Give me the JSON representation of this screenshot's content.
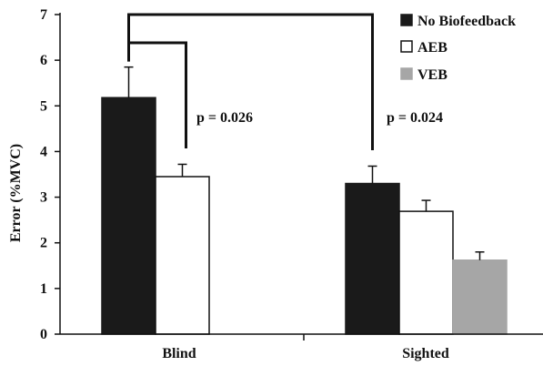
{
  "chart_data": {
    "type": "bar",
    "title": "",
    "xlabel": "",
    "ylabel": "Error (%MVC)",
    "ylim": [
      0,
      7
    ],
    "yticks": [
      0,
      1,
      2,
      3,
      4,
      5,
      6,
      7
    ],
    "grid": false,
    "legend_position": "top-right",
    "categories": [
      "Blind",
      "Sighted"
    ],
    "series": [
      {
        "name": "No Biofeedback",
        "color": "#1a1a1a",
        "values": [
          5.18,
          3.3
        ],
        "errors": [
          0.67,
          0.38
        ]
      },
      {
        "name": "AEB",
        "color": "#ffffff",
        "values": [
          3.45,
          2.69
        ],
        "errors": [
          0.27,
          0.24
        ]
      },
      {
        "name": "VEB",
        "color": "#a6a6a6",
        "values": [
          null,
          1.62
        ],
        "errors": [
          null,
          0.18
        ]
      }
    ],
    "annotations": [
      {
        "text": "p = 0.026",
        "between": [
          "Blind / No Biofeedback",
          "Blind / AEB"
        ]
      },
      {
        "text": "p = 0.024",
        "between": [
          "Blind / No Biofeedback",
          "Sighted / No Biofeedback"
        ]
      }
    ]
  }
}
